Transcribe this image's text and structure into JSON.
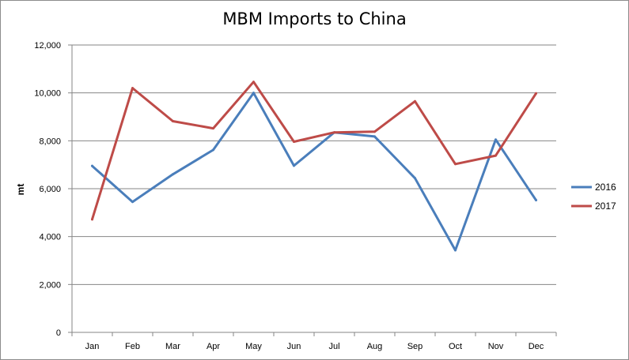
{
  "chart_data": {
    "type": "line",
    "title": "MBM Imports to China",
    "xlabel": "",
    "ylabel": "mt",
    "categories": [
      "Jan",
      "Feb",
      "Mar",
      "Apr",
      "May",
      "Jun",
      "Jul",
      "Aug",
      "Sep",
      "Oct",
      "Nov",
      "Dec"
    ],
    "ylim": [
      0,
      12000
    ],
    "yticks": [
      0,
      2000,
      4000,
      6000,
      8000,
      10000,
      12000
    ],
    "ytick_labels": [
      "0",
      "2,000",
      "4,000",
      "6,000",
      "8,000",
      "10,000",
      "12,000"
    ],
    "grid": true,
    "legend_position": "right",
    "series": [
      {
        "name": "2016",
        "color": "#4a7ebb",
        "values": [
          6950,
          5450,
          6600,
          7620,
          10000,
          6960,
          8350,
          8180,
          6440,
          3430,
          8050,
          5520
        ]
      },
      {
        "name": "2017",
        "color": "#be4b48",
        "values": [
          4720,
          10200,
          8820,
          8520,
          10460,
          7960,
          8350,
          8380,
          9650,
          7030,
          7380,
          9980
        ]
      }
    ]
  }
}
